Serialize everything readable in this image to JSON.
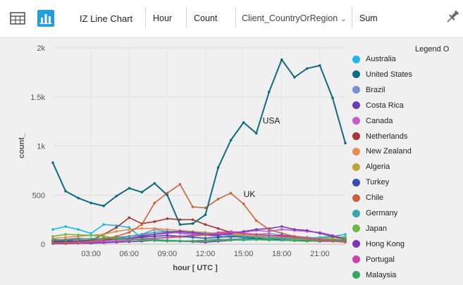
{
  "toolbar": {
    "table_icon": "table-icon",
    "chart_icon": "bar-chart-icon",
    "chart_type": "IZ Line Chart",
    "x_field": "Hour",
    "y_field": "Count",
    "split_field": "Client_CountryOrRegion",
    "aggregate": "Sum",
    "pin_icon": "pin-icon"
  },
  "legend_title": "Legend O",
  "colors": {
    "Australia": "#1ab8e8",
    "United States": "#0e6b80",
    "Brazil": "#7b8fd6",
    "Costa Rica": "#6a3fb5",
    "Canada": "#c25bd0",
    "Netherlands": "#a83434",
    "New Zealand": "#e09050",
    "Algeria": "#b8a83c",
    "Turkey": "#3c4bb4",
    "Chile": "#c9623a",
    "Germany": "#3aa8a8",
    "Japan": "#6cb840",
    "Hong Kong": "#7c38b8",
    "Portugal": "#cc44aa",
    "Malaysia": "#34a860"
  },
  "chart_data": {
    "type": "line",
    "xlabel": "hour [ UTC ]",
    "ylabel": "count_",
    "x": [
      0,
      1,
      2,
      3,
      4,
      5,
      6,
      7,
      8,
      9,
      10,
      11,
      12,
      13,
      14,
      15,
      16,
      17,
      18,
      19,
      20,
      21,
      22,
      23
    ],
    "xlim": [
      0,
      23
    ],
    "ylim": [
      0,
      2000
    ],
    "y_ticks": [
      {
        "value": 0,
        "label": "0"
      },
      {
        "value": 500,
        "label": "500"
      },
      {
        "value": 1000,
        "label": "1k"
      },
      {
        "value": 1500,
        "label": "1.5k"
      },
      {
        "value": 2000,
        "label": "2k"
      }
    ],
    "x_ticks": [
      {
        "value": 3,
        "label": "03:00"
      },
      {
        "value": 6,
        "label": "06:00"
      },
      {
        "value": 9,
        "label": "09:00"
      },
      {
        "value": 12,
        "label": "12:00"
      },
      {
        "value": 15,
        "label": "15:00"
      },
      {
        "value": 18,
        "label": "18:00"
      },
      {
        "value": 21,
        "label": "21:00"
      }
    ],
    "grid": true,
    "legend_position": "right",
    "annotations": [
      {
        "text": "USA",
        "x": 16.5,
        "y": 1230
      },
      {
        "text": "UK",
        "x": 15,
        "y": 480
      }
    ],
    "series": [
      {
        "name": "Australia",
        "values": [
          150,
          180,
          150,
          110,
          200,
          190,
          170,
          60,
          50,
          40,
          35,
          30,
          40,
          50,
          45,
          40,
          45,
          50,
          55,
          50,
          60,
          70,
          80,
          100
        ]
      },
      {
        "name": "United States",
        "values": [
          830,
          540,
          470,
          420,
          390,
          490,
          570,
          530,
          620,
          500,
          200,
          210,
          300,
          780,
          1060,
          1240,
          1130,
          1550,
          1880,
          1700,
          1790,
          1820,
          1490,
          1030
        ]
      },
      {
        "name": "Brazil",
        "values": [
          10,
          15,
          20,
          30,
          40,
          50,
          80,
          100,
          150,
          130,
          110,
          100,
          90,
          80,
          70,
          90,
          100,
          110,
          90,
          80,
          70,
          60,
          50,
          40
        ]
      },
      {
        "name": "Costa Rica",
        "values": [
          5,
          5,
          10,
          10,
          15,
          20,
          25,
          30,
          40,
          35,
          30,
          25,
          20,
          30,
          40,
          50,
          60,
          80,
          90,
          70,
          60,
          50,
          40,
          30
        ]
      },
      {
        "name": "Canada",
        "values": [
          40,
          50,
          60,
          50,
          40,
          60,
          80,
          90,
          100,
          110,
          120,
          110,
          100,
          120,
          130,
          120,
          140,
          130,
          150,
          140,
          130,
          120,
          90,
          60
        ]
      },
      {
        "name": "Netherlands",
        "values": [
          50,
          40,
          30,
          40,
          100,
          170,
          270,
          210,
          230,
          260,
          250,
          250,
          200,
          160,
          120,
          100,
          80,
          70,
          60,
          50,
          45,
          40,
          35,
          30
        ]
      },
      {
        "name": "New Zealand",
        "values": [
          60,
          70,
          80,
          90,
          100,
          130,
          150,
          160,
          160,
          150,
          140,
          130,
          120,
          110,
          100,
          90,
          80,
          70,
          60,
          55,
          50,
          50,
          55,
          60
        ]
      },
      {
        "name": "Algeria",
        "values": [
          20,
          25,
          30,
          35,
          40,
          45,
          50,
          55,
          60,
          65,
          70,
          80,
          90,
          100,
          110,
          100,
          90,
          80,
          70,
          60,
          50,
          40,
          30,
          25
        ]
      },
      {
        "name": "Turkey",
        "values": [
          30,
          30,
          35,
          40,
          45,
          50,
          60,
          70,
          80,
          90,
          80,
          70,
          60,
          70,
          80,
          70,
          60,
          50,
          45,
          40,
          35,
          30,
          30,
          30
        ]
      },
      {
        "name": "Chile",
        "values": [
          10,
          15,
          20,
          30,
          50,
          80,
          120,
          200,
          420,
          520,
          610,
          380,
          370,
          460,
          520,
          410,
          240,
          150,
          110,
          80,
          60,
          40,
          30,
          20
        ]
      },
      {
        "name": "Germany",
        "values": [
          40,
          45,
          50,
          55,
          60,
          70,
          80,
          100,
          120,
          130,
          130,
          120,
          110,
          100,
          90,
          80,
          70,
          65,
          60,
          55,
          50,
          45,
          40,
          40
        ]
      },
      {
        "name": "Japan",
        "values": [
          80,
          100,
          95,
          90,
          80,
          60,
          50,
          40,
          35,
          30,
          30,
          30,
          35,
          40,
          45,
          50,
          45,
          40,
          40,
          45,
          50,
          60,
          70,
          75
        ]
      },
      {
        "name": "Hong Kong",
        "values": [
          20,
          25,
          30,
          35,
          40,
          50,
          60,
          80,
          100,
          120,
          130,
          120,
          100,
          90,
          110,
          130,
          150,
          160,
          180,
          150,
          140,
          110,
          80,
          50
        ]
      },
      {
        "name": "Portugal",
        "values": [
          10,
          10,
          15,
          20,
          25,
          30,
          40,
          50,
          60,
          70,
          80,
          90,
          100,
          110,
          120,
          110,
          100,
          90,
          80,
          70,
          60,
          50,
          40,
          30
        ]
      },
      {
        "name": "Malaysia",
        "values": [
          40,
          45,
          50,
          55,
          60,
          55,
          50,
          45,
          40,
          35,
          30,
          35,
          40,
          45,
          50,
          55,
          50,
          45,
          40,
          35,
          30,
          35,
          40,
          45
        ]
      }
    ]
  }
}
